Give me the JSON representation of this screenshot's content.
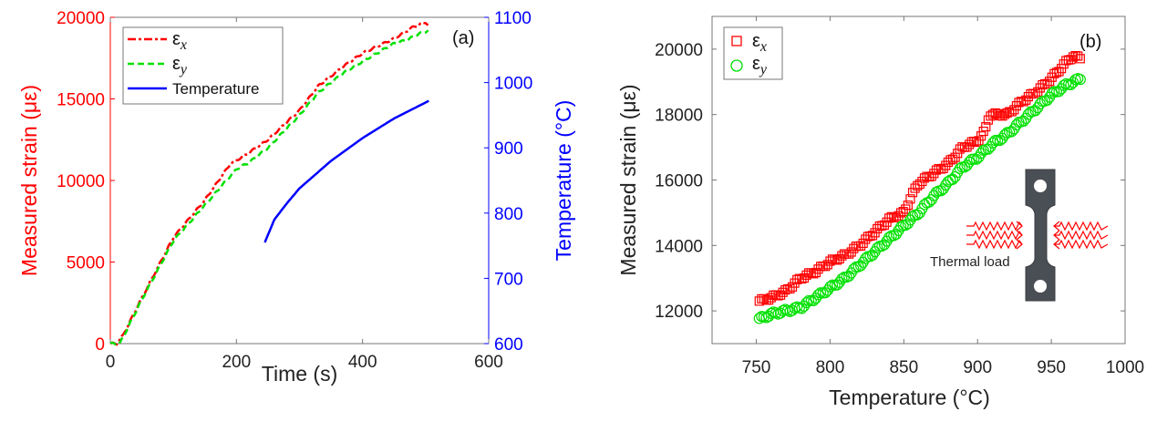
{
  "colors": {
    "ex": "#ff0000",
    "ey": "#00e000",
    "temp": "#0000ff",
    "axis": "#666666",
    "text": "#222222"
  },
  "chart_data": [
    {
      "type": "line",
      "panel_label": "(a)",
      "xlabel": "Time (s)",
      "ylabel": "Measured strain (με)",
      "y2label": "Temperature (°C)",
      "xlim": [
        0,
        600
      ],
      "ylim": [
        0,
        20000
      ],
      "y2lim": [
        600,
        1100
      ],
      "xticks": [
        0,
        200,
        400,
        600
      ],
      "yticks": [
        0,
        5000,
        10000,
        15000,
        20000
      ],
      "y2ticks": [
        600,
        700,
        800,
        900,
        1000,
        1100
      ],
      "legend_position": "top-left",
      "series": [
        {
          "name": "εx",
          "legend_main": "ε",
          "legend_sub": "x",
          "axis": "left",
          "style": "dash-dot",
          "x": [
            0,
            10,
            20,
            50,
            100,
            150,
            190,
            220,
            250,
            300,
            330,
            370,
            400,
            450,
            480,
            500,
            505
          ],
          "y": [
            0,
            0,
            500,
            2800,
            6500,
            8800,
            11000,
            11700,
            12500,
            14300,
            15800,
            17000,
            17800,
            18700,
            19400,
            19700,
            19500
          ]
        },
        {
          "name": "εy",
          "legend_main": "ε",
          "legend_sub": "y",
          "axis": "left",
          "style": "dashed",
          "x": [
            0,
            15,
            50,
            100,
            150,
            200,
            220,
            250,
            300,
            330,
            370,
            400,
            450,
            470,
            490,
            505
          ],
          "y": [
            0,
            0,
            2700,
            6300,
            8500,
            10700,
            11100,
            12000,
            14000,
            15400,
            16600,
            17300,
            18400,
            18600,
            19000,
            19200
          ]
        },
        {
          "name": "Temperature",
          "legend_main": "Temperature",
          "legend_sub": "",
          "axis": "right",
          "style": "solid",
          "x": [
            245,
            260,
            280,
            300,
            350,
            400,
            450,
            505
          ],
          "y": [
            755,
            790,
            815,
            838,
            880,
            915,
            945,
            972
          ]
        }
      ]
    },
    {
      "type": "scatter",
      "panel_label": "(b)",
      "xlabel": "Temperature (°C)",
      "ylabel": "Measured strain (με)",
      "xlim": [
        720,
        1000
      ],
      "ylim": [
        11000,
        21000
      ],
      "xticks": [
        750,
        800,
        850,
        900,
        950,
        1000
      ],
      "yticks": [
        12000,
        14000,
        16000,
        18000,
        20000
      ],
      "legend_position": "top-left",
      "inset_label": "Thermal load",
      "series": [
        {
          "name": "εx",
          "legend_main": "ε",
          "legend_sub": "x",
          "marker": "square",
          "x": [
            752,
            760,
            770,
            780,
            790,
            800,
            810,
            820,
            830,
            840,
            850,
            855,
            860,
            870,
            880,
            890,
            900,
            905,
            908,
            920,
            930,
            940,
            950,
            960,
            965,
            970
          ],
          "y": [
            12300,
            12400,
            12600,
            13000,
            13200,
            13500,
            13700,
            14000,
            14400,
            14800,
            15000,
            15500,
            15900,
            16200,
            16500,
            17000,
            17200,
            17500,
            18000,
            18000,
            18400,
            18700,
            19100,
            19600,
            19800,
            19700
          ]
        },
        {
          "name": "εy",
          "legend_main": "ε",
          "legend_sub": "y",
          "marker": "circle",
          "x": [
            752,
            760,
            770,
            780,
            790,
            800,
            810,
            820,
            830,
            840,
            850,
            860,
            870,
            880,
            890,
            900,
            910,
            920,
            930,
            940,
            950,
            960,
            970
          ],
          "y": [
            11750,
            11900,
            12000,
            12100,
            12400,
            12700,
            13000,
            13400,
            13800,
            14200,
            14600,
            15000,
            15500,
            15900,
            16400,
            16700,
            17100,
            17400,
            17800,
            18200,
            18600,
            18900,
            19100
          ]
        }
      ]
    }
  ]
}
